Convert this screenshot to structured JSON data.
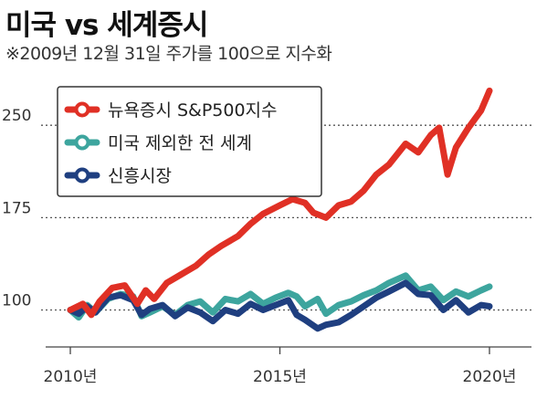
{
  "title": "미국 vs 세계증시",
  "subtitle": "※2009년 12월 31일 주가를 100으로 지수화",
  "chart_data": {
    "type": "line",
    "title": "미국 vs 세계증시",
    "subtitle": "※2009년 12월 31일 주가를 100으로 지수화",
    "xlabel": "",
    "ylabel": "",
    "xlim": [
      2010.0,
      2020.0
    ],
    "ylim": [
      70,
      285
    ],
    "yticks": [
      100,
      175,
      250
    ],
    "xticks": [
      2010,
      2015,
      2020
    ],
    "ytick_labels": [
      "100",
      "175",
      "250"
    ],
    "xtick_labels": [
      "2010년",
      "2015년",
      "2020년"
    ],
    "grid": "horizontal dotted",
    "legend_position": "top-left",
    "series": [
      {
        "name": "뉴욕증시 S&P500지수",
        "color": "#e03025",
        "x": [
          2010.0,
          2010.3,
          2010.5,
          2010.7,
          2011.0,
          2011.3,
          2011.6,
          2011.8,
          2012.0,
          2012.3,
          2012.6,
          2013.0,
          2013.3,
          2013.6,
          2014.0,
          2014.3,
          2014.6,
          2015.0,
          2015.3,
          2015.6,
          2015.8,
          2016.1,
          2016.4,
          2016.7,
          2017.0,
          2017.3,
          2017.6,
          2018.0,
          2018.3,
          2018.6,
          2018.8,
          2019.0,
          2019.2,
          2019.5,
          2019.8,
          2020.0
        ],
        "values": [
          100,
          105,
          96,
          107,
          118,
          120,
          105,
          116,
          109,
          122,
          128,
          136,
          145,
          152,
          160,
          170,
          178,
          185,
          190,
          187,
          179,
          175,
          185,
          188,
          197,
          210,
          218,
          235,
          228,
          242,
          248,
          210,
          232,
          248,
          262,
          278
        ]
      },
      {
        "name": "미국 제외한 전 세계",
        "color": "#3da59e",
        "x": [
          2010.0,
          2010.2,
          2010.4,
          2010.6,
          2010.9,
          2011.2,
          2011.5,
          2011.7,
          2011.9,
          2012.2,
          2012.5,
          2012.8,
          2013.1,
          2013.4,
          2013.7,
          2014.0,
          2014.3,
          2014.6,
          2014.9,
          2015.2,
          2015.4,
          2015.6,
          2015.9,
          2016.1,
          2016.4,
          2016.7,
          2017.0,
          2017.3,
          2017.6,
          2018.0,
          2018.3,
          2018.6,
          2018.9,
          2019.2,
          2019.5,
          2019.8,
          2020.0
        ],
        "values": [
          100,
          94,
          104,
          98,
          109,
          113,
          111,
          95,
          98,
          103,
          96,
          104,
          107,
          98,
          109,
          107,
          113,
          105,
          110,
          114,
          111,
          103,
          109,
          97,
          104,
          107,
          112,
          116,
          122,
          128,
          116,
          119,
          108,
          115,
          111,
          116,
          119
        ]
      },
      {
        "name": "신흥시장",
        "color": "#1f3f80",
        "x": [
          2010.0,
          2010.2,
          2010.4,
          2010.6,
          2010.9,
          2011.2,
          2011.5,
          2011.7,
          2011.9,
          2012.2,
          2012.5,
          2012.8,
          2013.1,
          2013.4,
          2013.7,
          2014.0,
          2014.3,
          2014.6,
          2014.9,
          2015.2,
          2015.4,
          2015.6,
          2015.9,
          2016.1,
          2016.4,
          2016.7,
          2017.0,
          2017.3,
          2017.6,
          2018.0,
          2018.3,
          2018.6,
          2018.9,
          2019.2,
          2019.5,
          2019.8,
          2020.0
        ],
        "values": [
          100,
          97,
          103,
          98,
          110,
          112,
          108,
          96,
          101,
          104,
          95,
          102,
          98,
          91,
          100,
          97,
          105,
          100,
          104,
          108,
          96,
          92,
          85,
          88,
          90,
          96,
          103,
          110,
          115,
          122,
          113,
          112,
          100,
          108,
          98,
          104,
          103
        ]
      }
    ]
  }
}
